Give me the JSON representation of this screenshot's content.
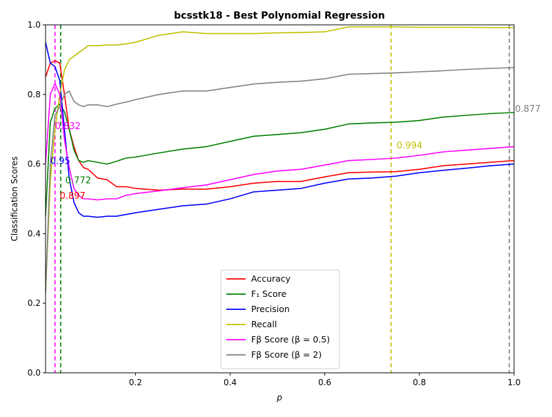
{
  "chart_data": {
    "type": "line",
    "title": "bcsstk18 - Best Polynomial Regression",
    "xlabel": "p",
    "ylabel": "Classification Scores",
    "xlim": [
      0.01,
      1.0
    ],
    "ylim": [
      0.0,
      1.0
    ],
    "xticks": [
      0.2,
      0.4,
      0.6,
      0.8,
      1.0
    ],
    "xtick_labels": [
      "0.2",
      "0.4",
      "0.6",
      "0.8",
      "1.0"
    ],
    "yticks": [
      0.0,
      0.2,
      0.4,
      0.6,
      0.8,
      1.0
    ],
    "ytick_labels": [
      "0.0",
      "0.2",
      "0.4",
      "0.6",
      "0.8",
      "1.0"
    ],
    "grid": false,
    "legend_position": "lower-center",
    "x": [
      0.01,
      0.02,
      0.03,
      0.04,
      0.05,
      0.06,
      0.07,
      0.08,
      0.09,
      0.1,
      0.12,
      0.14,
      0.16,
      0.18,
      0.2,
      0.25,
      0.3,
      0.35,
      0.4,
      0.45,
      0.5,
      0.55,
      0.6,
      0.65,
      0.7,
      0.75,
      0.8,
      0.85,
      0.9,
      0.95,
      1.0
    ],
    "series": [
      {
        "name": "Accuracy",
        "color": "#ff0000",
        "values": [
          0.85,
          0.89,
          0.897,
          0.89,
          0.8,
          0.7,
          0.65,
          0.61,
          0.59,
          0.585,
          0.56,
          0.555,
          0.535,
          0.535,
          0.53,
          0.525,
          0.528,
          0.528,
          0.535,
          0.545,
          0.55,
          0.55,
          0.563,
          0.575,
          0.577,
          0.578,
          0.585,
          0.595,
          0.6,
          0.605,
          0.61
        ]
      },
      {
        "name": "F₁ Score",
        "color": "#008000",
        "values": [
          0.45,
          0.72,
          0.76,
          0.772,
          0.75,
          0.7,
          0.64,
          0.61,
          0.605,
          0.61,
          0.605,
          0.6,
          0.608,
          0.617,
          0.62,
          0.632,
          0.643,
          0.65,
          0.665,
          0.68,
          0.685,
          0.69,
          0.7,
          0.715,
          0.718,
          0.72,
          0.725,
          0.735,
          0.74,
          0.745,
          0.748
        ]
      },
      {
        "name": "Precision",
        "color": "#0000ff",
        "values": [
          0.95,
          0.89,
          0.88,
          0.84,
          0.7,
          0.56,
          0.49,
          0.46,
          0.45,
          0.45,
          0.447,
          0.45,
          0.45,
          0.455,
          0.46,
          0.47,
          0.48,
          0.485,
          0.5,
          0.52,
          0.525,
          0.53,
          0.545,
          0.557,
          0.56,
          0.565,
          0.575,
          0.582,
          0.588,
          0.595,
          0.6
        ]
      },
      {
        "name": "Recall",
        "color": "#bfbf00",
        "values": [
          0.23,
          0.55,
          0.7,
          0.8,
          0.87,
          0.9,
          0.91,
          0.92,
          0.93,
          0.94,
          0.94,
          0.942,
          0.942,
          0.945,
          0.95,
          0.97,
          0.98,
          0.975,
          0.975,
          0.975,
          0.977,
          0.978,
          0.98,
          0.994,
          0.994,
          0.994,
          0.993,
          0.993,
          0.993,
          0.992,
          0.992
        ]
      },
      {
        "name": "Fβ Score (β = 0.5)",
        "color": "#ff00ff",
        "values": [
          0.6,
          0.8,
          0.832,
          0.8,
          0.67,
          0.59,
          0.53,
          0.51,
          0.5,
          0.5,
          0.497,
          0.5,
          0.5,
          0.51,
          0.515,
          0.523,
          0.532,
          0.54,
          0.555,
          0.57,
          0.58,
          0.585,
          0.597,
          0.61,
          0.613,
          0.617,
          0.625,
          0.635,
          0.64,
          0.645,
          0.65
        ]
      },
      {
        "name": "Fβ Score (β = 2)",
        "color": "#808080",
        "values": [
          0.23,
          0.6,
          0.74,
          0.765,
          0.8,
          0.81,
          0.78,
          0.77,
          0.765,
          0.77,
          0.77,
          0.765,
          0.772,
          0.778,
          0.785,
          0.8,
          0.81,
          0.81,
          0.82,
          0.83,
          0.835,
          0.838,
          0.845,
          0.858,
          0.86,
          0.862,
          0.865,
          0.868,
          0.872,
          0.875,
          0.877
        ]
      }
    ],
    "vlines": [
      {
        "x": 0.03,
        "color": "#ff00ff"
      },
      {
        "x": 0.042,
        "color": "#008000"
      },
      {
        "x": 0.74,
        "color": "#bfbf00"
      },
      {
        "x": 0.99,
        "color": "#808080"
      }
    ],
    "annotations": [
      {
        "text": "0.832",
        "x": 0.03,
        "y": 0.7,
        "color": "#ff00ff"
      },
      {
        "text": "0.95",
        "x": 0.02,
        "y": 0.6,
        "color": "#0000ff"
      },
      {
        "text": "0.772",
        "x": 0.052,
        "y": 0.545,
        "color": "#008000"
      },
      {
        "text": "0.897",
        "x": 0.04,
        "y": 0.5,
        "color": "#ff0000"
      },
      {
        "text": "0.994",
        "x": 0.752,
        "y": 0.645,
        "color": "#bfbf00"
      },
      {
        "text": "0.877",
        "x": 1.002,
        "y": 0.75,
        "color": "#808080"
      }
    ]
  }
}
